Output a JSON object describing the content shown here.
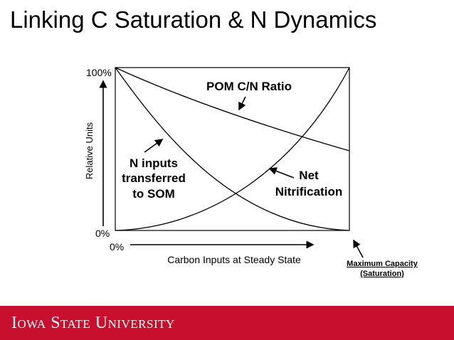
{
  "slide": {
    "title": "Linking C Saturation & N Dynamics",
    "footer_logo": "Iowa State University",
    "footer_color": "#c8102e"
  },
  "diagram": {
    "y_axis_label": "Relative Units",
    "y_tick_top": "100%",
    "y_tick_bottom": "0%",
    "x_tick_origin": "0%",
    "x_axis_label": "Carbon Inputs at Steady State",
    "max_capacity_line1": "Maximum Capacity",
    "max_capacity_line2": "(Saturation)",
    "pom_label": "POM C/N Ratio",
    "n_inputs_line1": "N inputs",
    "n_inputs_line2": "transferred",
    "n_inputs_line3": "to SOM",
    "net_nitrification_line1": "Net",
    "net_nitrification_line2": "Nitrification"
  }
}
